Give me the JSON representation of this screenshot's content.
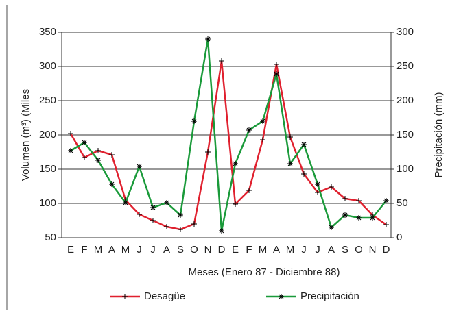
{
  "chart_data": {
    "type": "line",
    "xlabel": "Meses (Enero 87 - Diciembre 88)",
    "ylabel": "Volumen (m³) (Miles",
    "y2label": "Precipitación (mm)",
    "categories": [
      "E",
      "F",
      "M",
      "A",
      "M",
      "J",
      "J",
      "A",
      "S",
      "O",
      "N",
      "D",
      "E",
      "F",
      "M",
      "A",
      "M",
      "J",
      "J",
      "A",
      "S",
      "O",
      "N",
      "D"
    ],
    "ylim": [
      50,
      350
    ],
    "yticks": [
      50,
      100,
      150,
      200,
      250,
      300,
      350
    ],
    "y2lim": [
      0,
      300
    ],
    "y2ticks": [
      0,
      50,
      100,
      150,
      200,
      250,
      300
    ],
    "grid": true,
    "legend": "bottom",
    "series": [
      {
        "name": "Desagüe",
        "color": "#e0202e",
        "marker": "+",
        "values": [
          202,
          167,
          177,
          171,
          105,
          84,
          75,
          66,
          62,
          70,
          175,
          308,
          99,
          119,
          193,
          303,
          197,
          143,
          116,
          124,
          107,
          104,
          83,
          69
        ]
      },
      {
        "name": "Precipitación",
        "color": "#1a9a3a",
        "marker": "*",
        "axis": "y2",
        "values": [
          127,
          139,
          113,
          78,
          51,
          104,
          44,
          51,
          33,
          170,
          290,
          10,
          108,
          157,
          170,
          239,
          108,
          136,
          78,
          15,
          33,
          29,
          29,
          54
        ]
      }
    ]
  }
}
